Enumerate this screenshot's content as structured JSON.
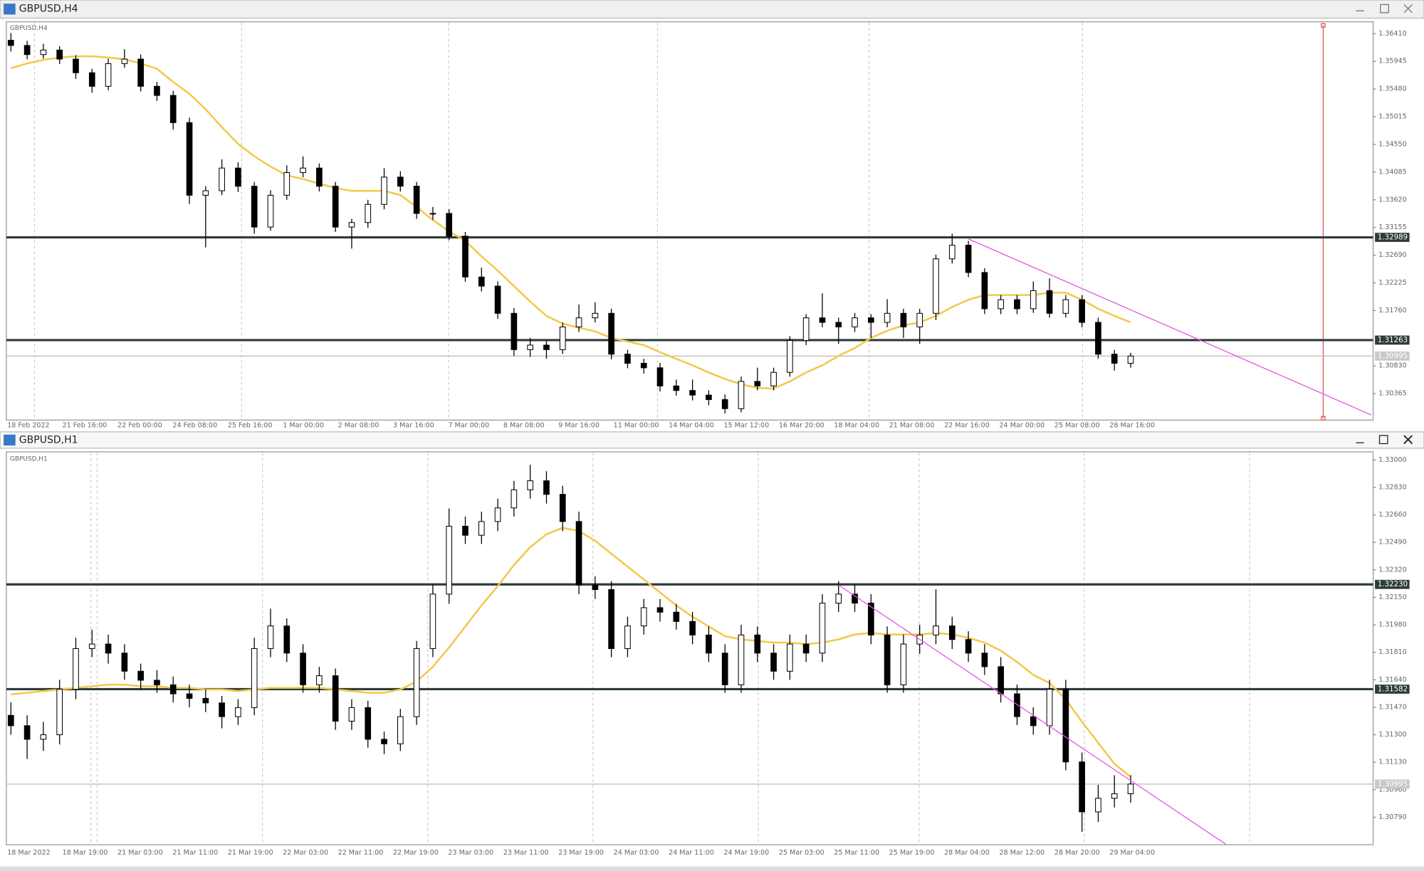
{
  "chart_data": [
    {
      "type": "candlestick",
      "title": "GBPUSD,H4",
      "ylim": [
        1.2992,
        1.3661
      ],
      "yticks": [
        {
          "value": 1.3641,
          "label": "1.36410"
        },
        1.35945,
        {
          "value": 1.3548,
          "label": "1.35480"
        },
        1.35015,
        {
          "value": 1.3455,
          "label": "1.34550"
        },
        1.34085,
        {
          "value": 1.3362,
          "label": "1.33620"
        },
        1.33155,
        {
          "value": 1.3269,
          "label": "1.32690"
        },
        1.32225,
        {
          "value": 1.3176,
          "label": "1.31760"
        },
        {
          "value": 1.3083,
          "label": "1.30830"
        },
        1.30365
      ],
      "xlabels": [
        "18 Feb 2022",
        "21 Feb 16:00",
        "22 Feb 00:00",
        "24 Feb 08:00",
        "25 Feb 16:00",
        "1 Mar 00:00",
        "2 Mar 08:00",
        "3 Mar 16:00",
        "7 Mar 00:00",
        "8 Mar 08:00",
        "9 Mar 16:00",
        "11 Mar 00:00",
        "14 Mar 04:00",
        "15 Mar 12:00",
        "16 Mar 20:00",
        "18 Mar 04:00",
        "21 Mar 08:00",
        "22 Mar 16:00",
        "24 Mar 00:00",
        "25 Mar 08:00",
        "28 Mar 16:00"
      ],
      "levels": [
        1.32989,
        1.31263
      ],
      "level_color": "#2e3b3b",
      "current_price": 1.30995,
      "trendline": [
        1.32963,
        1.30005
      ],
      "trend_color": "#e055e0",
      "ma": {
        "color": "#f2c94c",
        "values": [
          1.3583,
          1.3591,
          1.3597,
          1.3601,
          1.3603,
          1.3603,
          1.3601,
          1.3598,
          1.3591,
          1.3582,
          1.356,
          1.354,
          1.3514,
          1.3484,
          1.3456,
          1.3435,
          1.3418,
          1.3403,
          1.3397,
          1.3389,
          1.3382,
          1.3377,
          1.3377,
          1.3377,
          1.337,
          1.335,
          1.3328,
          1.3309,
          1.3293,
          1.3267,
          1.3243,
          1.3217,
          1.3191,
          1.3167,
          1.3154,
          1.3147,
          1.3141,
          1.313,
          1.3124,
          1.3118,
          1.3106,
          1.3095,
          1.3084,
          1.3072,
          1.3061,
          1.3052,
          1.3046,
          1.3045,
          1.3057,
          1.3072,
          1.3084,
          1.31,
          1.3113,
          1.313,
          1.3142,
          1.3151,
          1.3156,
          1.3167,
          1.3182,
          1.3194,
          1.3202,
          1.3202,
          1.3202,
          1.3202,
          1.3206,
          1.3206,
          1.3194,
          1.3179,
          1.3167,
          1.3156
        ]
      },
      "candles": [
        [
          1.363,
          1.3642,
          1.3611,
          1.36212
        ],
        [
          1.36212,
          1.3629,
          1.3598,
          1.36059
        ],
        [
          1.36059,
          1.3624,
          1.3599,
          1.36135
        ],
        [
          1.36135,
          1.362,
          1.359,
          1.35983
        ],
        [
          1.35983,
          1.3605,
          1.3565,
          1.35754
        ],
        [
          1.35754,
          1.3582,
          1.3542,
          1.35526
        ],
        [
          1.35526,
          1.3599,
          1.3546,
          1.35907
        ],
        [
          1.35907,
          1.3615,
          1.3584,
          1.35983
        ],
        [
          1.35983,
          1.3606,
          1.3544,
          1.35526
        ],
        [
          1.35526,
          1.356,
          1.3528,
          1.35373
        ],
        [
          1.35373,
          1.3545,
          1.348,
          1.34916
        ],
        [
          1.34916,
          1.35,
          1.3355,
          1.33696
        ],
        [
          1.33696,
          1.3385,
          1.3282,
          1.33772
        ],
        [
          1.33772,
          1.343,
          1.337,
          1.34153
        ],
        [
          1.34153,
          1.3425,
          1.3375,
          1.33848
        ],
        [
          1.33848,
          1.3392,
          1.3305,
          1.33162
        ],
        [
          1.33162,
          1.3378,
          1.331,
          1.33696
        ],
        [
          1.33696,
          1.342,
          1.3362,
          1.34077
        ],
        [
          1.34077,
          1.3435,
          1.34,
          1.34153
        ],
        [
          1.34153,
          1.3423,
          1.3376,
          1.33848
        ],
        [
          1.33848,
          1.3392,
          1.3308,
          1.33162
        ],
        [
          1.33162,
          1.333,
          1.328,
          1.33238
        ],
        [
          1.33238,
          1.3362,
          1.3315,
          1.33543
        ],
        [
          1.33543,
          1.3415,
          1.3346,
          1.34001
        ],
        [
          1.34001,
          1.341,
          1.3376,
          1.33848
        ],
        [
          1.33848,
          1.3392,
          1.333,
          1.33391
        ],
        [
          1.33391,
          1.335,
          1.3328,
          1.33391
        ],
        [
          1.33391,
          1.3346,
          1.3294,
          1.33009
        ],
        [
          1.33009,
          1.3308,
          1.3224,
          1.32323
        ],
        [
          1.32323,
          1.3248,
          1.3208,
          1.3217
        ],
        [
          1.3217,
          1.3225,
          1.3162,
          1.31713
        ],
        [
          1.31713,
          1.318,
          1.31,
          1.31103
        ],
        [
          1.31103,
          1.313,
          1.3098,
          1.31179
        ],
        [
          1.31179,
          1.3126,
          1.3095,
          1.31103
        ],
        [
          1.31103,
          1.3156,
          1.3103,
          1.31485
        ],
        [
          1.31485,
          1.3186,
          1.314,
          1.31637
        ],
        [
          1.31637,
          1.319,
          1.3156,
          1.31713
        ],
        [
          1.31713,
          1.3179,
          1.3094,
          1.31027
        ],
        [
          1.31027,
          1.311,
          1.3079,
          1.30874
        ],
        [
          1.30874,
          1.3095,
          1.307,
          1.30798
        ],
        [
          1.30798,
          1.3088,
          1.304,
          1.30493
        ],
        [
          1.30493,
          1.306,
          1.3033,
          1.30417
        ],
        [
          1.30417,
          1.306,
          1.3025,
          1.3034
        ],
        [
          1.3034,
          1.3042,
          1.3017,
          1.30264
        ],
        [
          1.30264,
          1.3035,
          1.3003,
          1.30112
        ],
        [
          1.30112,
          1.3065,
          1.3005,
          1.30569
        ],
        [
          1.30569,
          1.308,
          1.3042,
          1.30493
        ],
        [
          1.30493,
          1.308,
          1.3042,
          1.30722
        ],
        [
          1.30722,
          1.3133,
          1.3065,
          1.31256
        ],
        [
          1.31256,
          1.317,
          1.3118,
          1.31637
        ],
        [
          1.31637,
          1.3205,
          1.3148,
          1.31561
        ],
        [
          1.31561,
          1.3164,
          1.312,
          1.31485
        ],
        [
          1.31485,
          1.3172,
          1.314,
          1.31637
        ],
        [
          1.31637,
          1.317,
          1.313,
          1.31561
        ],
        [
          1.31561,
          1.3195,
          1.3148,
          1.31713
        ],
        [
          1.31713,
          1.3179,
          1.313,
          1.31485
        ],
        [
          1.31485,
          1.3179,
          1.312,
          1.31713
        ],
        [
          1.31713,
          1.327,
          1.316,
          1.32628
        ],
        [
          1.32628,
          1.3305,
          1.3255,
          1.32857
        ],
        [
          1.32857,
          1.3293,
          1.3232,
          1.32399
        ],
        [
          1.32399,
          1.3247,
          1.317,
          1.3179
        ],
        [
          1.3179,
          1.3202,
          1.317,
          1.31942
        ],
        [
          1.31942,
          1.3202,
          1.317,
          1.3179
        ],
        [
          1.3179,
          1.3225,
          1.3172,
          1.32094
        ],
        [
          1.32094,
          1.323,
          1.3164,
          1.31713
        ],
        [
          1.31713,
          1.3202,
          1.3164,
          1.31942
        ],
        [
          1.31942,
          1.3202,
          1.3148,
          1.31561
        ],
        [
          1.31561,
          1.3164,
          1.3095,
          1.31027
        ],
        [
          1.31027,
          1.311,
          1.3075,
          1.30874
        ],
        [
          1.30874,
          1.3105,
          1.308,
          1.30995
        ]
      ]
    },
    {
      "type": "candlestick",
      "title": "GBPUSD,H1",
      "ylim": [
        1.3062,
        1.3305
      ],
      "yticks": [
        {
          "value": 1.33,
          "label": "1.33000"
        },
        {
          "value": 1.3283,
          "label": "1.32830"
        },
        {
          "value": 1.3266,
          "label": "1.32660"
        },
        {
          "value": 1.3249,
          "label": "1.32490"
        },
        {
          "value": 1.3232,
          "label": "1.32320"
        },
        {
          "value": 1.3215,
          "label": "1.32150"
        },
        {
          "value": 1.3198,
          "label": "1.31980"
        },
        {
          "value": 1.3181,
          "label": "1.31810"
        },
        {
          "value": 1.3164,
          "label": "1.31640"
        },
        {
          "value": 1.3147,
          "label": "1.31470"
        },
        {
          "value": 1.313,
          "label": "1.31300"
        },
        {
          "value": 1.3113,
          "label": "1.31130"
        },
        {
          "value": 1.3096,
          "label": "1.30960"
        },
        {
          "value": 1.3079,
          "label": "1.30790"
        }
      ],
      "xlabels": [
        "18 Mar 2022",
        "18 Mar 19:00",
        "21 Mar 03:00",
        "21 Mar 11:00",
        "21 Mar 19:00",
        "22 Mar 03:00",
        "22 Mar 11:00",
        "22 Mar 19:00",
        "23 Mar 03:00",
        "23 Mar 11:00",
        "23 Mar 19:00",
        "24 Mar 03:00",
        "24 Mar 11:00",
        "24 Mar 19:00",
        "25 Mar 03:00",
        "25 Mar 11:00",
        "25 Mar 19:00",
        "28 Mar 04:00",
        "28 Mar 12:00",
        "28 Mar 20:00",
        "29 Mar 04:00"
      ],
      "levels": [
        {
          "value": 1.3223,
          "label": "1.32230"
        },
        1.31582
      ],
      "level_color": "#2e3b3b",
      "current_price": 1.30995,
      "trendline": [
        1.32226,
        1.30622
      ],
      "trend_color": "#e055e0",
      "ma": {
        "color": "#f2c94c",
        "values": [
          1.3155,
          1.3156,
          1.3157,
          1.3158,
          1.3159,
          1.316,
          1.3161,
          1.3161,
          1.316,
          1.316,
          1.3159,
          1.3159,
          1.3158,
          1.3158,
          1.3157,
          1.3158,
          1.3159,
          1.3159,
          1.3159,
          1.3159,
          1.3158,
          1.3157,
          1.3156,
          1.3156,
          1.3158,
          1.3163,
          1.3172,
          1.3184,
          1.3197,
          1.321,
          1.3222,
          1.3235,
          1.3246,
          1.3254,
          1.3258,
          1.3256,
          1.325,
          1.3242,
          1.3234,
          1.3226,
          1.3218,
          1.321,
          1.3203,
          1.3197,
          1.3191,
          1.3189,
          1.3188,
          1.3187,
          1.3187,
          1.3186,
          1.3187,
          1.3189,
          1.3192,
          1.3193,
          1.3192,
          1.3192,
          1.3192,
          1.3193,
          1.3192,
          1.319,
          1.3187,
          1.3182,
          1.3175,
          1.3167,
          1.3162,
          1.3152,
          1.3138,
          1.3125,
          1.3112,
          1.3104
        ]
      },
      "candles": [
        [
          1.3142,
          1.315,
          1.313,
          1.31356
        ],
        [
          1.31356,
          1.3142,
          1.3115,
          1.31272
        ],
        [
          1.31272,
          1.3138,
          1.312,
          1.313
        ],
        [
          1.313,
          1.3164,
          1.3124,
          1.31581
        ],
        [
          1.31581,
          1.319,
          1.3152,
          1.31833
        ],
        [
          1.31833,
          1.3195,
          1.3178,
          1.31861
        ],
        [
          1.31861,
          1.3192,
          1.3174,
          1.31805
        ],
        [
          1.31805,
          1.3186,
          1.3164,
          1.31693
        ],
        [
          1.31693,
          1.3174,
          1.3158,
          1.31637
        ],
        [
          1.31637,
          1.317,
          1.3156,
          1.31609
        ],
        [
          1.31609,
          1.3166,
          1.315,
          1.31553
        ],
        [
          1.31553,
          1.3161,
          1.3147,
          1.31525
        ],
        [
          1.31525,
          1.3158,
          1.3144,
          1.31497
        ],
        [
          1.31497,
          1.3154,
          1.3134,
          1.31412
        ],
        [
          1.31412,
          1.3152,
          1.3136,
          1.31468
        ],
        [
          1.31468,
          1.319,
          1.3142,
          1.31833
        ],
        [
          1.31833,
          1.3208,
          1.3178,
          1.31973
        ],
        [
          1.31973,
          1.3202,
          1.3175,
          1.31805
        ],
        [
          1.31805,
          1.3186,
          1.3156,
          1.31609
        ],
        [
          1.31609,
          1.3172,
          1.3156,
          1.31665
        ],
        [
          1.31665,
          1.3171,
          1.3133,
          1.31384
        ],
        [
          1.31384,
          1.3152,
          1.3133,
          1.31468
        ],
        [
          1.31468,
          1.3151,
          1.3122,
          1.31272
        ],
        [
          1.31272,
          1.3132,
          1.3118,
          1.31244
        ],
        [
          1.31244,
          1.3146,
          1.312,
          1.31412
        ],
        [
          1.31412,
          1.3188,
          1.3136,
          1.31833
        ],
        [
          1.31833,
          1.3223,
          1.3178,
          1.3217
        ],
        [
          1.3217,
          1.327,
          1.3211,
          1.3259
        ],
        [
          1.3259,
          1.3265,
          1.3248,
          1.32534
        ],
        [
          1.32534,
          1.3268,
          1.3248,
          1.32619
        ],
        [
          1.32619,
          1.3276,
          1.3256,
          1.32703
        ],
        [
          1.32703,
          1.3287,
          1.3265,
          1.32815
        ],
        [
          1.32815,
          1.3297,
          1.3276,
          1.32871
        ],
        [
          1.32871,
          1.3293,
          1.3273,
          1.32787
        ],
        [
          1.32787,
          1.3284,
          1.3256,
          1.32619
        ],
        [
          1.32619,
          1.3268,
          1.3217,
          1.32226
        ],
        [
          1.32226,
          1.3228,
          1.3214,
          1.32198
        ],
        [
          1.32198,
          1.3225,
          1.3178,
          1.31833
        ],
        [
          1.31833,
          1.3203,
          1.3178,
          1.31973
        ],
        [
          1.31973,
          1.3214,
          1.3192,
          1.32086
        ],
        [
          1.32086,
          1.3214,
          1.32,
          1.32058
        ],
        [
          1.32058,
          1.3211,
          1.3195,
          1.32001
        ],
        [
          1.32001,
          1.3206,
          1.3186,
          1.31917
        ],
        [
          1.31917,
          1.3197,
          1.3175,
          1.31805
        ],
        [
          1.31805,
          1.3186,
          1.3156,
          1.31609
        ],
        [
          1.31609,
          1.3198,
          1.3156,
          1.31917
        ],
        [
          1.31917,
          1.3197,
          1.3175,
          1.31805
        ],
        [
          1.31805,
          1.3186,
          1.3164,
          1.31693
        ],
        [
          1.31693,
          1.3192,
          1.3164,
          1.31861
        ],
        [
          1.31861,
          1.3192,
          1.3175,
          1.31805
        ],
        [
          1.31805,
          1.3217,
          1.3175,
          1.32114
        ],
        [
          1.32114,
          1.3225,
          1.3206,
          1.3217
        ],
        [
          1.3217,
          1.3223,
          1.3206,
          1.32114
        ],
        [
          1.32114,
          1.3217,
          1.3186,
          1.31917
        ],
        [
          1.31917,
          1.3197,
          1.3156,
          1.31609
        ],
        [
          1.31609,
          1.3192,
          1.3156,
          1.31861
        ],
        [
          1.31861,
          1.3198,
          1.318,
          1.31917
        ],
        [
          1.31917,
          1.322,
          1.3186,
          1.31973
        ],
        [
          1.31973,
          1.3203,
          1.3183,
          1.31889
        ],
        [
          1.31889,
          1.3194,
          1.3175,
          1.31805
        ],
        [
          1.31805,
          1.3186,
          1.3167,
          1.31721
        ],
        [
          1.31721,
          1.3178,
          1.315,
          1.31553
        ],
        [
          1.31553,
          1.3161,
          1.3136,
          1.31412
        ],
        [
          1.31412,
          1.3147,
          1.313,
          1.31356
        ],
        [
          1.31356,
          1.3164,
          1.313,
          1.31581
        ],
        [
          1.31581,
          1.3164,
          1.3108,
          1.31132
        ],
        [
          1.31132,
          1.3119,
          1.307,
          1.30823
        ],
        [
          1.30823,
          1.3099,
          1.3076,
          1.30907
        ],
        [
          1.30907,
          1.3105,
          1.3085,
          1.30935
        ],
        [
          1.30935,
          1.3105,
          1.3088,
          1.30995
        ]
      ]
    }
  ]
}
